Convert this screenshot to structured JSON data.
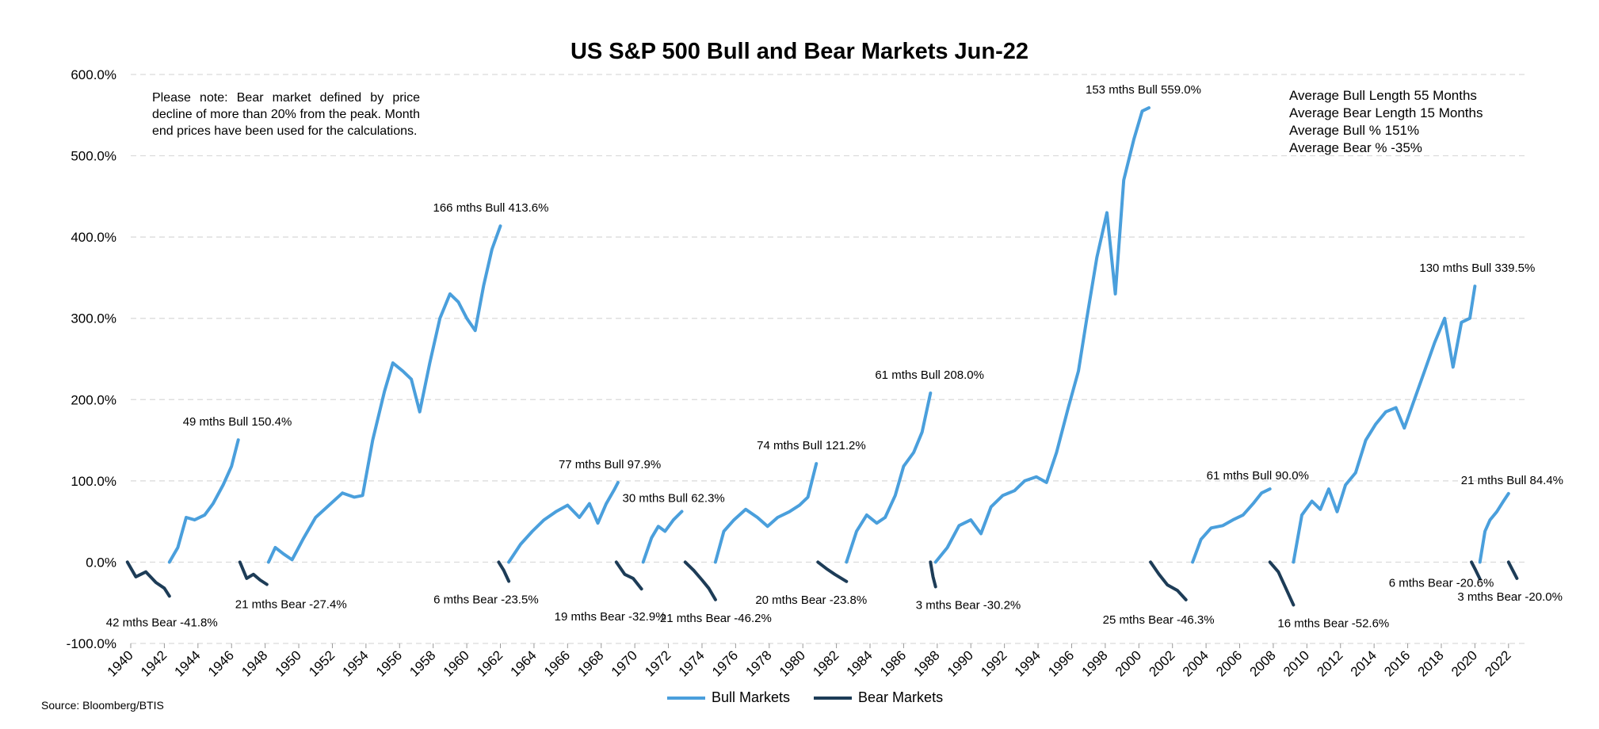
{
  "chart_data": {
    "type": "line",
    "title": "US S&P 500 Bull and Bear Markets Jun-22",
    "ylim": [
      -100,
      600
    ],
    "y_ticks": [
      -100,
      0,
      100,
      200,
      300,
      400,
      500,
      600
    ],
    "y_tick_labels": [
      "-100.0%",
      "0.0%",
      "100.0%",
      "200.0%",
      "300.0%",
      "400.0%",
      "500.0%",
      "600.0%"
    ],
    "xlim": [
      1940,
      2023
    ],
    "x_tick_labels": [
      "1940",
      "1942",
      "1944",
      "1946",
      "1948",
      "1950",
      "1952",
      "1954",
      "1956",
      "1958",
      "1960",
      "1962",
      "1964",
      "1966",
      "1968",
      "1970",
      "1972",
      "1974",
      "1976",
      "1978",
      "1980",
      "1982",
      "1984",
      "1986",
      "1988",
      "1990",
      "1992",
      "1994",
      "1996",
      "1998",
      "2000",
      "2002",
      "2004",
      "2006",
      "2008",
      "2010",
      "2012",
      "2014",
      "2016",
      "2018",
      "2020",
      "2022"
    ],
    "grid": "horizontal dashed",
    "legend_position": "bottom-center",
    "colors": {
      "bull": "#4a9fdc",
      "bear": "#1d3c57",
      "grid": "#d9d9d9"
    },
    "series": [
      {
        "name": "Bull Markets",
        "segments": [
          {
            "label": "49 mths Bull 150.4%",
            "points": [
              [
                1942.3,
                0
              ],
              [
                1942.8,
                18
              ],
              [
                1943.3,
                55
              ],
              [
                1943.8,
                52
              ],
              [
                1944.4,
                58
              ],
              [
                1944.9,
                72
              ],
              [
                1945.5,
                95
              ],
              [
                1946.0,
                118
              ],
              [
                1946.4,
                150.4
              ]
            ]
          },
          {
            "label": "166 mths Bull 413.6%",
            "points": [
              [
                1948.2,
                0
              ],
              [
                1948.6,
                18
              ],
              [
                1949.1,
                10
              ],
              [
                1949.6,
                3
              ],
              [
                1950.3,
                30
              ],
              [
                1951.0,
                55
              ],
              [
                1951.8,
                70
              ],
              [
                1952.6,
                85
              ],
              [
                1953.3,
                80
              ],
              [
                1953.8,
                82
              ],
              [
                1954.4,
                150
              ],
              [
                1955.1,
                210
              ],
              [
                1955.6,
                245
              ],
              [
                1956.2,
                235
              ],
              [
                1956.7,
                225
              ],
              [
                1957.2,
                185
              ],
              [
                1957.8,
                245
              ],
              [
                1958.4,
                300
              ],
              [
                1959.0,
                330
              ],
              [
                1959.5,
                320
              ],
              [
                1960.0,
                300
              ],
              [
                1960.5,
                285
              ],
              [
                1961.0,
                340
              ],
              [
                1961.5,
                385
              ],
              [
                1962.0,
                413.6
              ]
            ]
          },
          {
            "label": "77 mths Bull 97.9%",
            "points": [
              [
                1962.5,
                0
              ],
              [
                1963.2,
                22
              ],
              [
                1963.9,
                38
              ],
              [
                1964.6,
                52
              ],
              [
                1965.3,
                62
              ],
              [
                1966.0,
                70
              ],
              [
                1966.7,
                55
              ],
              [
                1967.3,
                72
              ],
              [
                1967.8,
                48
              ],
              [
                1968.3,
                72
              ],
              [
                1968.8,
                90
              ],
              [
                1969.0,
                97.9
              ]
            ]
          },
          {
            "label": "30 mths Bull 62.3%",
            "points": [
              [
                1970.5,
                0
              ],
              [
                1971.0,
                30
              ],
              [
                1971.4,
                44
              ],
              [
                1971.8,
                38
              ],
              [
                1972.3,
                52
              ],
              [
                1972.8,
                62.3
              ]
            ]
          },
          {
            "label": "74 mths Bull 121.2%",
            "points": [
              [
                1974.8,
                0
              ],
              [
                1975.3,
                38
              ],
              [
                1975.9,
                52
              ],
              [
                1976.6,
                65
              ],
              [
                1977.3,
                55
              ],
              [
                1977.9,
                44
              ],
              [
                1978.5,
                55
              ],
              [
                1979.2,
                62
              ],
              [
                1979.8,
                70
              ],
              [
                1980.3,
                80
              ],
              [
                1980.8,
                121.2
              ]
            ]
          },
          {
            "label": "61 mths Bull 208.0%",
            "points": [
              [
                1982.6,
                0
              ],
              [
                1983.2,
                38
              ],
              [
                1983.8,
                58
              ],
              [
                1984.4,
                48
              ],
              [
                1984.9,
                55
              ],
              [
                1985.5,
                82
              ],
              [
                1986.0,
                118
              ],
              [
                1986.6,
                135
              ],
              [
                1987.1,
                160
              ],
              [
                1987.6,
                208.0
              ]
            ]
          },
          {
            "label": "153 mths Bull 559.0%",
            "points": [
              [
                1987.9,
                0
              ],
              [
                1988.6,
                18
              ],
              [
                1989.3,
                45
              ],
              [
                1990.0,
                52
              ],
              [
                1990.6,
                35
              ],
              [
                1991.2,
                68
              ],
              [
                1991.9,
                82
              ],
              [
                1992.6,
                88
              ],
              [
                1993.2,
                100
              ],
              [
                1993.9,
                105
              ],
              [
                1994.5,
                98
              ],
              [
                1995.1,
                135
              ],
              [
                1995.8,
                190
              ],
              [
                1996.4,
                235
              ],
              [
                1996.9,
                300
              ],
              [
                1997.5,
                375
              ],
              [
                1998.1,
                430
              ],
              [
                1998.6,
                330
              ],
              [
                1999.1,
                470
              ],
              [
                1999.7,
                520
              ],
              [
                2000.2,
                555
              ],
              [
                2000.6,
                559.0
              ]
            ]
          },
          {
            "label": "61 mths Bull 90.0%",
            "points": [
              [
                2003.2,
                0
              ],
              [
                2003.7,
                28
              ],
              [
                2004.3,
                42
              ],
              [
                2005.0,
                45
              ],
              [
                2005.6,
                52
              ],
              [
                2006.2,
                58
              ],
              [
                2006.8,
                72
              ],
              [
                2007.3,
                85
              ],
              [
                2007.8,
                90.0
              ]
            ]
          },
          {
            "label": "130 mths Bull 339.5%",
            "points": [
              [
                2009.2,
                0
              ],
              [
                2009.7,
                58
              ],
              [
                2010.3,
                75
              ],
              [
                2010.8,
                65
              ],
              [
                2011.3,
                90
              ],
              [
                2011.8,
                62
              ],
              [
                2012.3,
                95
              ],
              [
                2012.9,
                110
              ],
              [
                2013.5,
                150
              ],
              [
                2014.1,
                170
              ],
              [
                2014.7,
                185
              ],
              [
                2015.3,
                190
              ],
              [
                2015.8,
                165
              ],
              [
                2016.4,
                200
              ],
              [
                2017.0,
                235
              ],
              [
                2017.6,
                270
              ],
              [
                2018.2,
                300
              ],
              [
                2018.7,
                240
              ],
              [
                2019.2,
                295
              ],
              [
                2019.7,
                300
              ],
              [
                2020.0,
                339.5
              ]
            ]
          },
          {
            "label": "21 mths Bull 84.4%",
            "points": [
              [
                2020.3,
                0
              ],
              [
                2020.6,
                38
              ],
              [
                2020.9,
                52
              ],
              [
                2021.3,
                62
              ],
              [
                2021.7,
                75
              ],
              [
                2022.0,
                84.4
              ]
            ]
          }
        ]
      },
      {
        "name": "Bear Markets",
        "segments": [
          {
            "label": "42 mths Bear -41.8%",
            "points": [
              [
                1939.8,
                0
              ],
              [
                1940.3,
                -18
              ],
              [
                1940.9,
                -12
              ],
              [
                1941.5,
                -25
              ],
              [
                1942.0,
                -32
              ],
              [
                1942.3,
                -41.8
              ]
            ]
          },
          {
            "label": "21 mths Bear -27.4%",
            "points": [
              [
                1946.5,
                0
              ],
              [
                1946.9,
                -20
              ],
              [
                1947.3,
                -15
              ],
              [
                1947.7,
                -22
              ],
              [
                1948.1,
                -27.4
              ]
            ]
          },
          {
            "label": "6 mths Bear -23.5%",
            "points": [
              [
                1961.9,
                0
              ],
              [
                1962.2,
                -10
              ],
              [
                1962.5,
                -23.5
              ]
            ]
          },
          {
            "label": "19 mths Bear -32.9%",
            "points": [
              [
                1968.9,
                0
              ],
              [
                1969.4,
                -15
              ],
              [
                1969.9,
                -20
              ],
              [
                1970.4,
                -32.9
              ]
            ]
          },
          {
            "label": "21 mths Bear -46.2%",
            "points": [
              [
                1973.0,
                0
              ],
              [
                1973.5,
                -10
              ],
              [
                1974.0,
                -22
              ],
              [
                1974.4,
                -32
              ],
              [
                1974.8,
                -46.2
              ]
            ]
          },
          {
            "label": "20 mths Bear -23.8%",
            "points": [
              [
                1980.9,
                0
              ],
              [
                1981.4,
                -8
              ],
              [
                1981.9,
                -15
              ],
              [
                1982.6,
                -23.8
              ]
            ]
          },
          {
            "label": "3 mths Bear -30.2%",
            "points": [
              [
                1987.6,
                0
              ],
              [
                1987.75,
                -18
              ],
              [
                1987.9,
                -30.2
              ]
            ]
          },
          {
            "label": "25 mths Bear -46.3%",
            "points": [
              [
                2000.7,
                0
              ],
              [
                2001.2,
                -15
              ],
              [
                2001.7,
                -28
              ],
              [
                2002.3,
                -35
              ],
              [
                2002.8,
                -46.3
              ]
            ]
          },
          {
            "label": "16 mths Bear -52.6%",
            "points": [
              [
                2007.8,
                0
              ],
              [
                2008.3,
                -12
              ],
              [
                2008.7,
                -30
              ],
              [
                2009.2,
                -52.6
              ]
            ]
          },
          {
            "label": "6 mths Bear -20.6%",
            "points": [
              [
                2019.8,
                0
              ],
              [
                2020.05,
                -10
              ],
              [
                2020.3,
                -20.6
              ]
            ]
          },
          {
            "label": "3 mths Bear -20.0%",
            "points": [
              [
                2022.0,
                0
              ],
              [
                2022.25,
                -10
              ],
              [
                2022.5,
                -20.0
              ]
            ]
          }
        ]
      }
    ]
  },
  "note": "Please note: Bear market defined by price decline of more than 20% from the peak. Month end prices have been used for the calculations.",
  "stats": [
    "Average Bull Length  55 Months",
    "Average Bear Length  15 Months",
    "Average Bull %  151%",
    "Average Bear %  -35%"
  ],
  "source": "Source: Bloomberg/BTIS",
  "legend": {
    "bull": "Bull Markets",
    "bear": "Bear Markets"
  }
}
